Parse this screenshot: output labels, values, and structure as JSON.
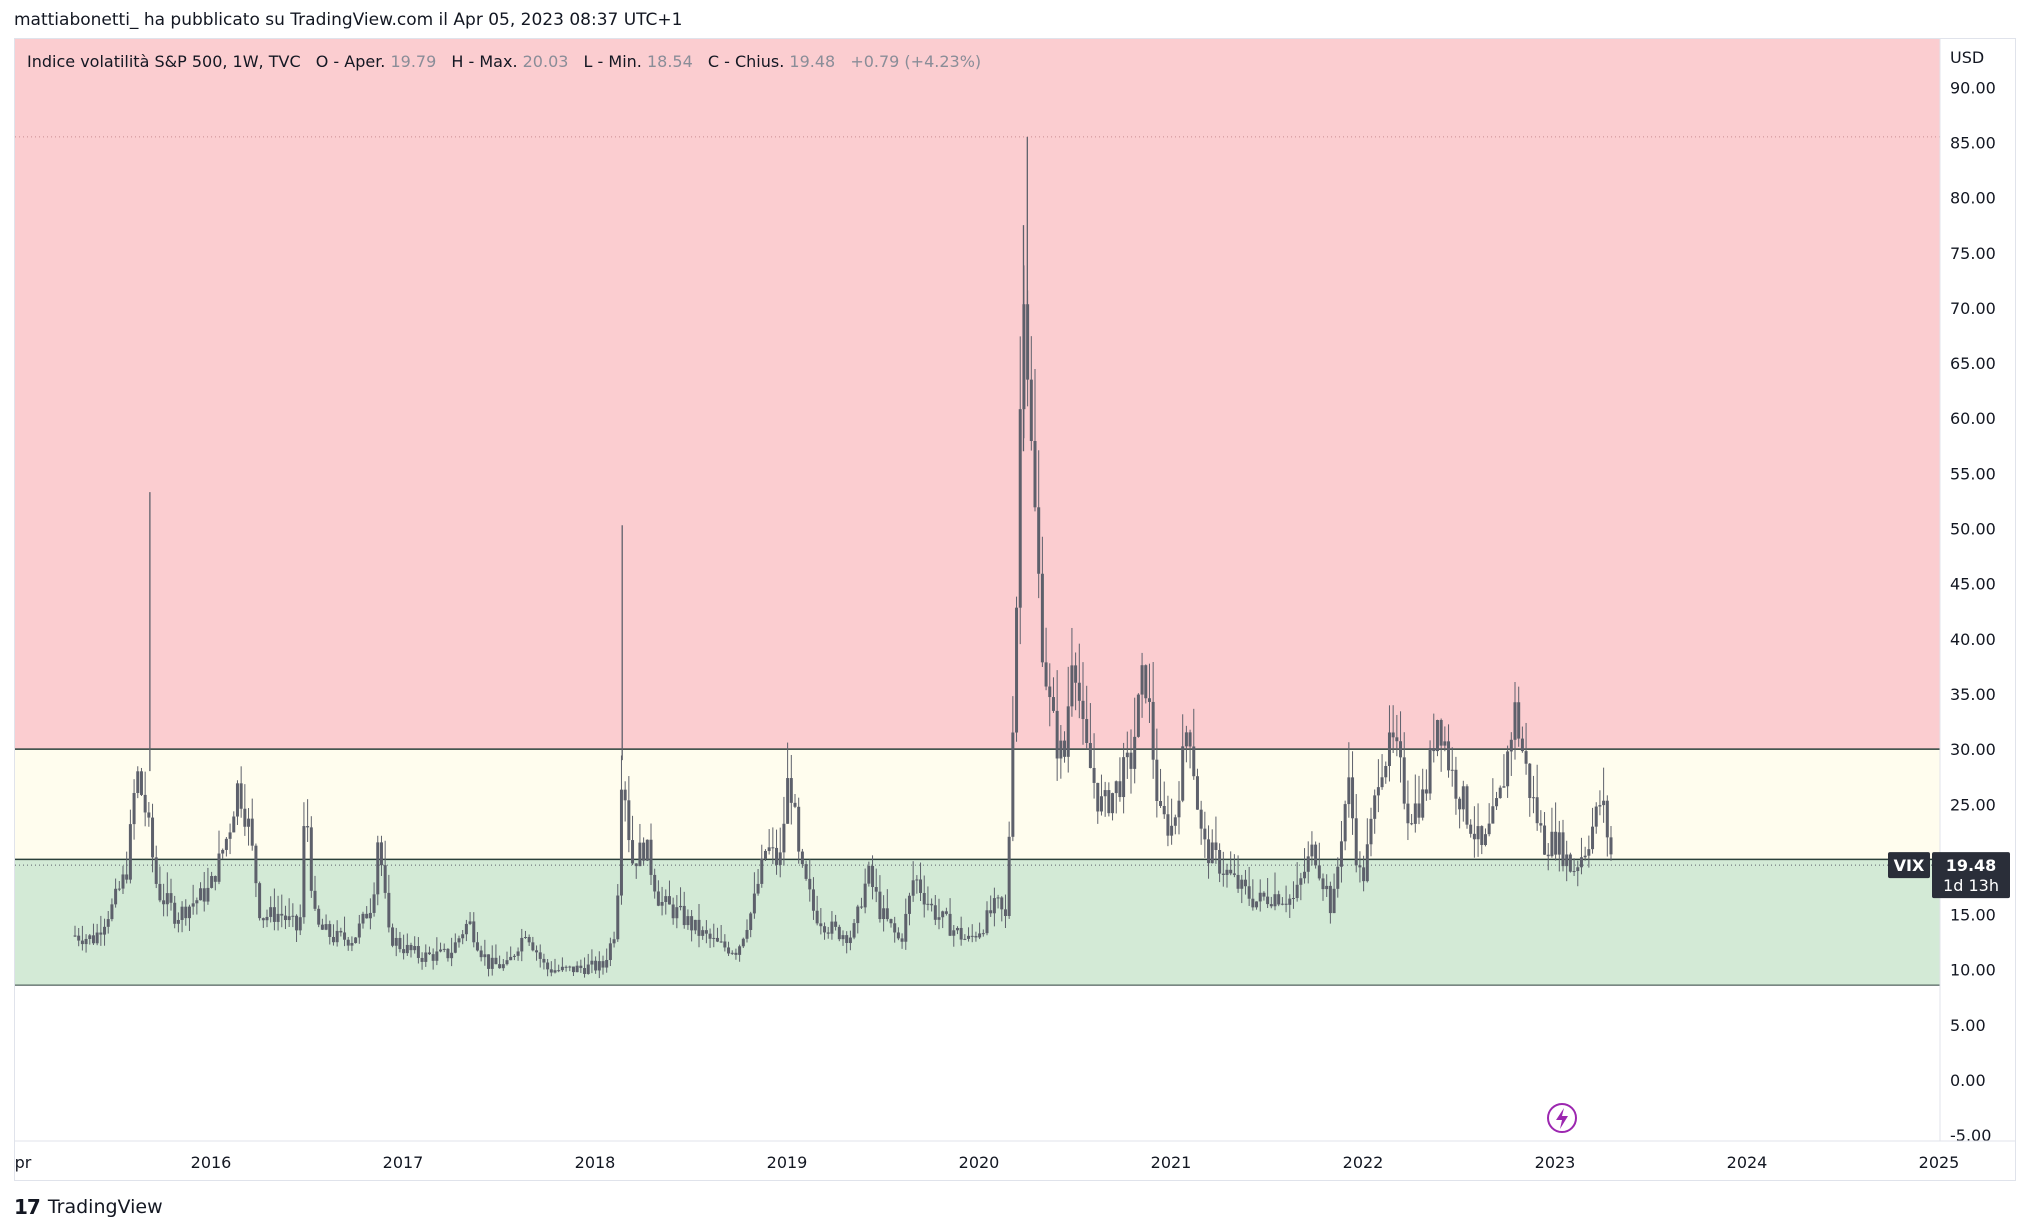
{
  "header": {
    "text": "mattiabonetti_ ha pubblicato su TradingView.com il Apr 05, 2023 08:37 UTC+1"
  },
  "footer": {
    "brand": "TradingView",
    "logo_glyph": "17"
  },
  "legend": {
    "title": "Indice volatilità S&P 500, 1W, TVC",
    "o_label": "O - Aper.",
    "o_value": "19.79",
    "h_label": "H - Max.",
    "h_value": "20.03",
    "l_label": "L - Min.",
    "l_value": "18.54",
    "c_label": "C - Chius.",
    "c_value": "19.48",
    "change": "+0.79 (+4.23%)"
  },
  "price_tag": {
    "symbol": "VIX",
    "value": "19.48",
    "countdown": "1d 13h"
  },
  "colors": {
    "red_zone": "#fbcdd0",
    "yellow_zone": "#fffdee",
    "green_zone": "#d3ead6",
    "candle": "#5d606b",
    "zone_line": "#2a3f3a",
    "tag_bg": "#2a2e39",
    "lightning": "#9c27b0"
  },
  "chart_data": {
    "type": "candlestick",
    "title": "Indice volatilità S&P 500",
    "currency": "USD",
    "ylim": [
      -5,
      90
    ],
    "y_ticks": [
      "90.00",
      "85.00",
      "80.00",
      "75.00",
      "70.00",
      "65.00",
      "60.00",
      "55.00",
      "50.00",
      "45.00",
      "40.00",
      "35.00",
      "30.00",
      "25.00",
      "20.00",
      "15.00",
      "10.00",
      "5.00",
      "0.00",
      "-5.00"
    ],
    "x_ticks": [
      "pr",
      "2016",
      "2017",
      "2018",
      "2019",
      "2020",
      "2021",
      "2022",
      "2023",
      "2024",
      "2025"
    ],
    "xlim": [
      2015.25,
      2025.15
    ],
    "zones": [
      {
        "name": "high",
        "from": 30,
        "to": 90
      },
      {
        "name": "mid",
        "from": 20,
        "to": 30
      },
      {
        "name": "low",
        "from": 8.6,
        "to": 20
      }
    ],
    "dotted_line": 85.5,
    "last_price": 19.48,
    "series_weekly_close": [
      [
        2015.25,
        13.1
      ],
      [
        2015.35,
        12.8
      ],
      [
        2015.45,
        15.9
      ],
      [
        2015.52,
        19.0
      ],
      [
        2015.57,
        28.0
      ],
      [
        2015.62,
        24.2
      ],
      [
        2015.68,
        17.1
      ],
      [
        2015.78,
        14.9
      ],
      [
        2015.88,
        16.3
      ],
      [
        2015.95,
        17.2
      ],
      [
        2016.05,
        22.5
      ],
      [
        2016.1,
        26.9
      ],
      [
        2016.15,
        23.5
      ],
      [
        2016.22,
        14.8
      ],
      [
        2016.32,
        15.1
      ],
      [
        2016.42,
        13.4
      ],
      [
        2016.45,
        25.8
      ],
      [
        2016.5,
        14.0
      ],
      [
        2016.6,
        12.9
      ],
      [
        2016.7,
        12.8
      ],
      [
        2016.8,
        16.1
      ],
      [
        2016.83,
        22.5
      ],
      [
        2016.88,
        13.2
      ],
      [
        2016.95,
        12.1
      ],
      [
        2017.05,
        11.2
      ],
      [
        2017.2,
        11.4
      ],
      [
        2017.3,
        14.4
      ],
      [
        2017.4,
        10.5
      ],
      [
        2017.5,
        10.3
      ],
      [
        2017.6,
        13.6
      ],
      [
        2017.7,
        10.1
      ],
      [
        2017.8,
        9.9
      ],
      [
        2017.9,
        10.2
      ],
      [
        2018.0,
        10.3
      ],
      [
        2018.07,
        13.9
      ],
      [
        2018.1,
        29.1
      ],
      [
        2018.15,
        19.8
      ],
      [
        2018.22,
        21.2
      ],
      [
        2018.3,
        16.1
      ],
      [
        2018.4,
        15.0
      ],
      [
        2018.5,
        13.4
      ],
      [
        2018.6,
        12.2
      ],
      [
        2018.7,
        11.8
      ],
      [
        2018.78,
        15.6
      ],
      [
        2018.85,
        21.1
      ],
      [
        2018.92,
        19.5
      ],
      [
        2018.97,
        28.4
      ],
      [
        2019.02,
        19.6
      ],
      [
        2019.1,
        15.2
      ],
      [
        2019.2,
        13.5
      ],
      [
        2019.3,
        13.1
      ],
      [
        2019.38,
        18.7
      ],
      [
        2019.45,
        15.1
      ],
      [
        2019.55,
        12.4
      ],
      [
        2019.62,
        18.5
      ],
      [
        2019.72,
        15.3
      ],
      [
        2019.8,
        14.0
      ],
      [
        2019.9,
        12.6
      ],
      [
        2019.97,
        13.8
      ],
      [
        2020.05,
        16.0
      ],
      [
        2020.1,
        14.4
      ],
      [
        2020.15,
        40.1
      ],
      [
        2020.19,
        75.9
      ],
      [
        2020.23,
        57.1
      ],
      [
        2020.28,
        41.7
      ],
      [
        2020.33,
        33.0
      ],
      [
        2020.4,
        28.5
      ],
      [
        2020.45,
        40.7
      ],
      [
        2020.5,
        30.6
      ],
      [
        2020.6,
        24.5
      ],
      [
        2020.68,
        26.7
      ],
      [
        2020.75,
        29.0
      ],
      [
        2020.82,
        37.6
      ],
      [
        2020.9,
        23.7
      ],
      [
        2020.97,
        22.8
      ],
      [
        2021.05,
        33.1
      ],
      [
        2021.12,
        21.3
      ],
      [
        2021.2,
        19.8
      ],
      [
        2021.3,
        17.7
      ],
      [
        2021.4,
        16.2
      ],
      [
        2021.5,
        16.8
      ],
      [
        2021.6,
        16.3
      ],
      [
        2021.7,
        21.2
      ],
      [
        2021.8,
        15.4
      ],
      [
        2021.88,
        27.2
      ],
      [
        2021.95,
        17.2
      ],
      [
        2022.05,
        28.9
      ],
      [
        2022.12,
        30.3
      ],
      [
        2022.2,
        24.1
      ],
      [
        2022.28,
        25.8
      ],
      [
        2022.35,
        33.4
      ],
      [
        2022.42,
        27.8
      ],
      [
        2022.5,
        24.2
      ],
      [
        2022.58,
        20.6
      ],
      [
        2022.68,
        26.2
      ],
      [
        2022.75,
        33.6
      ],
      [
        2022.82,
        26.8
      ],
      [
        2022.9,
        21.4
      ],
      [
        2022.97,
        21.7
      ],
      [
        2023.05,
        19.0
      ],
      [
        2023.12,
        21.1
      ],
      [
        2023.2,
        25.5
      ],
      [
        2023.26,
        19.48
      ]
    ]
  }
}
